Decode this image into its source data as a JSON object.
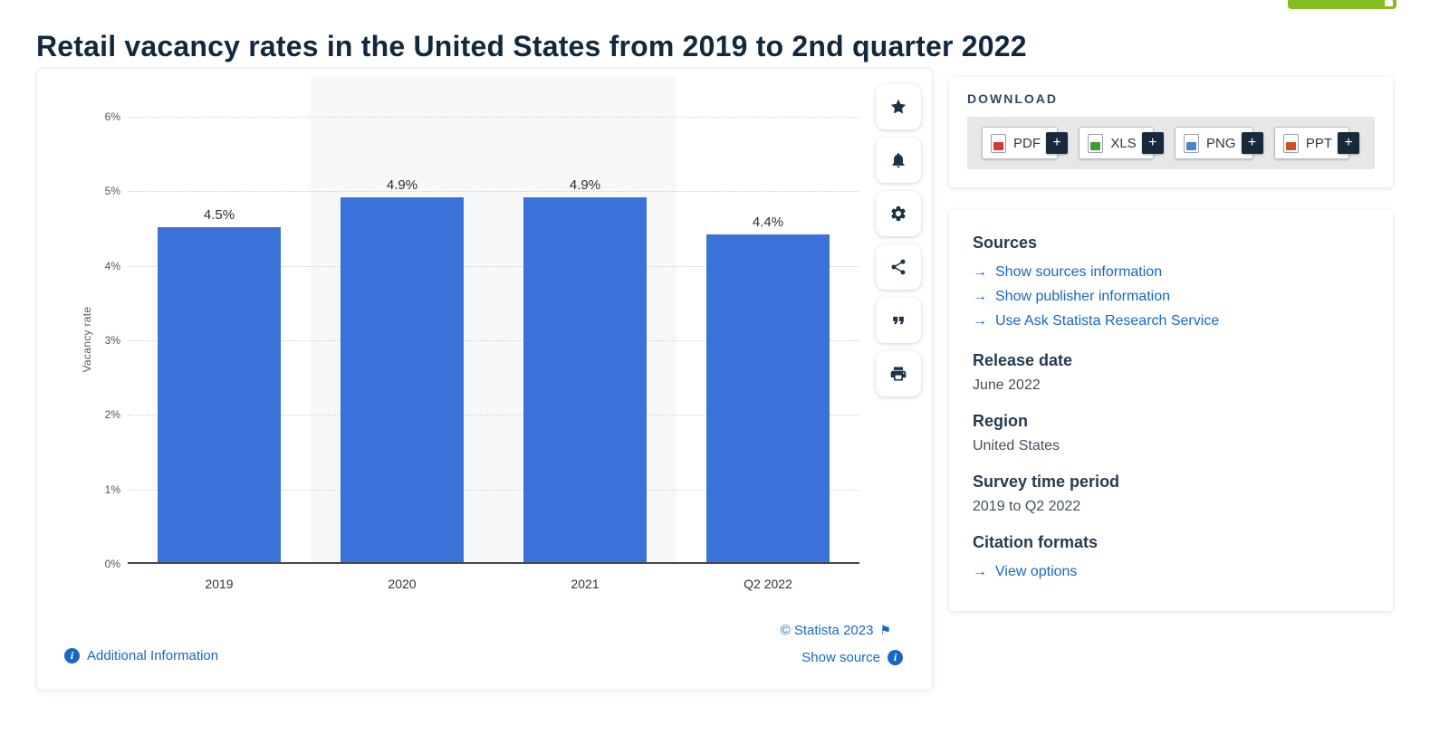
{
  "page": {
    "title": "Retail vacancy rates in the United States from 2019 to 2nd quarter 2022"
  },
  "chart_data": {
    "type": "bar",
    "title": "Retail vacancy rates in the United States from 2019 to 2nd quarter 2022",
    "categories": [
      "2019",
      "2020",
      "2021",
      "Q2 2022"
    ],
    "values": [
      4.5,
      4.9,
      4.9,
      4.4
    ],
    "value_labels": [
      "4.5%",
      "4.9%",
      "4.9%",
      "4.4%"
    ],
    "xlabel": "",
    "ylabel": "Vacancy rate",
    "ylim": [
      0,
      6
    ],
    "yticks": [
      "0%",
      "1%",
      "2%",
      "3%",
      "4%",
      "5%",
      "6%"
    ],
    "bar_color": "#3a72d9",
    "shaded_columns": [
      1,
      2
    ],
    "grid": true,
    "legend": false
  },
  "chart_footer": {
    "copyright": "© Statista 2023",
    "flag_icon": "⚑",
    "additional_information": "Additional Information",
    "show_source": "Show source"
  },
  "toolbar": {
    "buttons": [
      {
        "name": "favorite-button",
        "icon": "star-icon"
      },
      {
        "name": "notification-button",
        "icon": "bell-icon"
      },
      {
        "name": "settings-button",
        "icon": "gear-icon"
      },
      {
        "name": "share-button",
        "icon": "share-icon"
      },
      {
        "name": "cite-button",
        "icon": "quote-icon"
      },
      {
        "name": "print-button",
        "icon": "printer-icon"
      }
    ]
  },
  "download": {
    "heading": "DOWNLOAD",
    "plus": "+",
    "items": [
      {
        "label": "PDF",
        "icon": "pdf-file-icon",
        "color": "#d6382c"
      },
      {
        "label": "XLS",
        "icon": "xls-file-icon",
        "color": "#3f9c35"
      },
      {
        "label": "PNG",
        "icon": "png-file-icon",
        "color": "#4a86c8"
      },
      {
        "label": "PPT",
        "icon": "ppt-file-icon",
        "color": "#d04f23"
      }
    ]
  },
  "details": {
    "arrow": "→",
    "sources_heading": "Sources",
    "source_links": [
      "Show sources information",
      "Show publisher information",
      "Use Ask Statista Research Service"
    ],
    "release_date_heading": "Release date",
    "release_date": "June 2022",
    "region_heading": "Region",
    "region": "United States",
    "survey_heading": "Survey time period",
    "survey_period": "2019 to Q2 2022",
    "citation_heading": "Citation formats",
    "citation_link": "View options"
  }
}
